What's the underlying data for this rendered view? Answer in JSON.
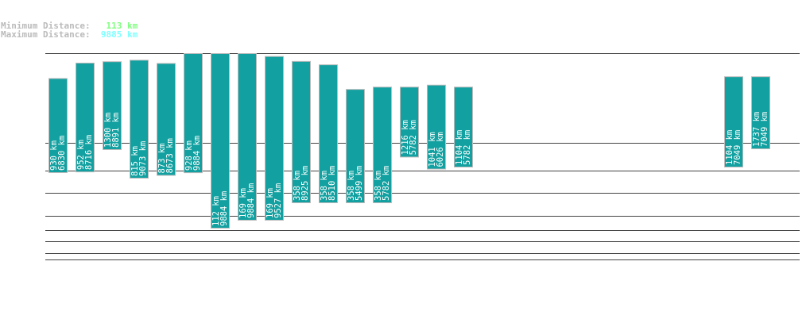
{
  "header": {
    "min_label": "Minimum Distance:",
    "min_value": "113 km",
    "min_color": "#80ff80",
    "max_label": "Maximum Distance:",
    "max_value": "9885 km",
    "max_color": "#80ffff"
  },
  "chart_data": {
    "type": "bar",
    "subtype": "floating-range",
    "unit": "km",
    "bar_color": "#12a0a0",
    "grid": true,
    "slots": [
      {
        "min": 930,
        "max": 6830
      },
      {
        "min": 952,
        "max": 8716
      },
      {
        "min": 1300,
        "max": 8891
      },
      {
        "min": 815,
        "max": 9073
      },
      {
        "min": 873,
        "max": 8673
      },
      {
        "min": 928,
        "max": 9884
      },
      {
        "min": 112,
        "max": 9884
      },
      {
        "min": 169,
        "max": 9884
      },
      {
        "min": 169,
        "max": 9527
      },
      {
        "min": 358,
        "max": 8925
      },
      {
        "min": 358,
        "max": 8510
      },
      {
        "min": 358,
        "max": 5499
      },
      {
        "min": 358,
        "max": 5782
      },
      {
        "min": 1216,
        "max": 5782
      },
      {
        "min": 1041,
        "max": 6026
      },
      {
        "min": 1104,
        "max": 5782
      },
      null,
      null,
      null,
      null,
      null,
      null,
      null,
      null,
      null,
      {
        "min": 1104,
        "max": 7049
      },
      {
        "min": 1737,
        "max": 7049
      }
    ]
  }
}
